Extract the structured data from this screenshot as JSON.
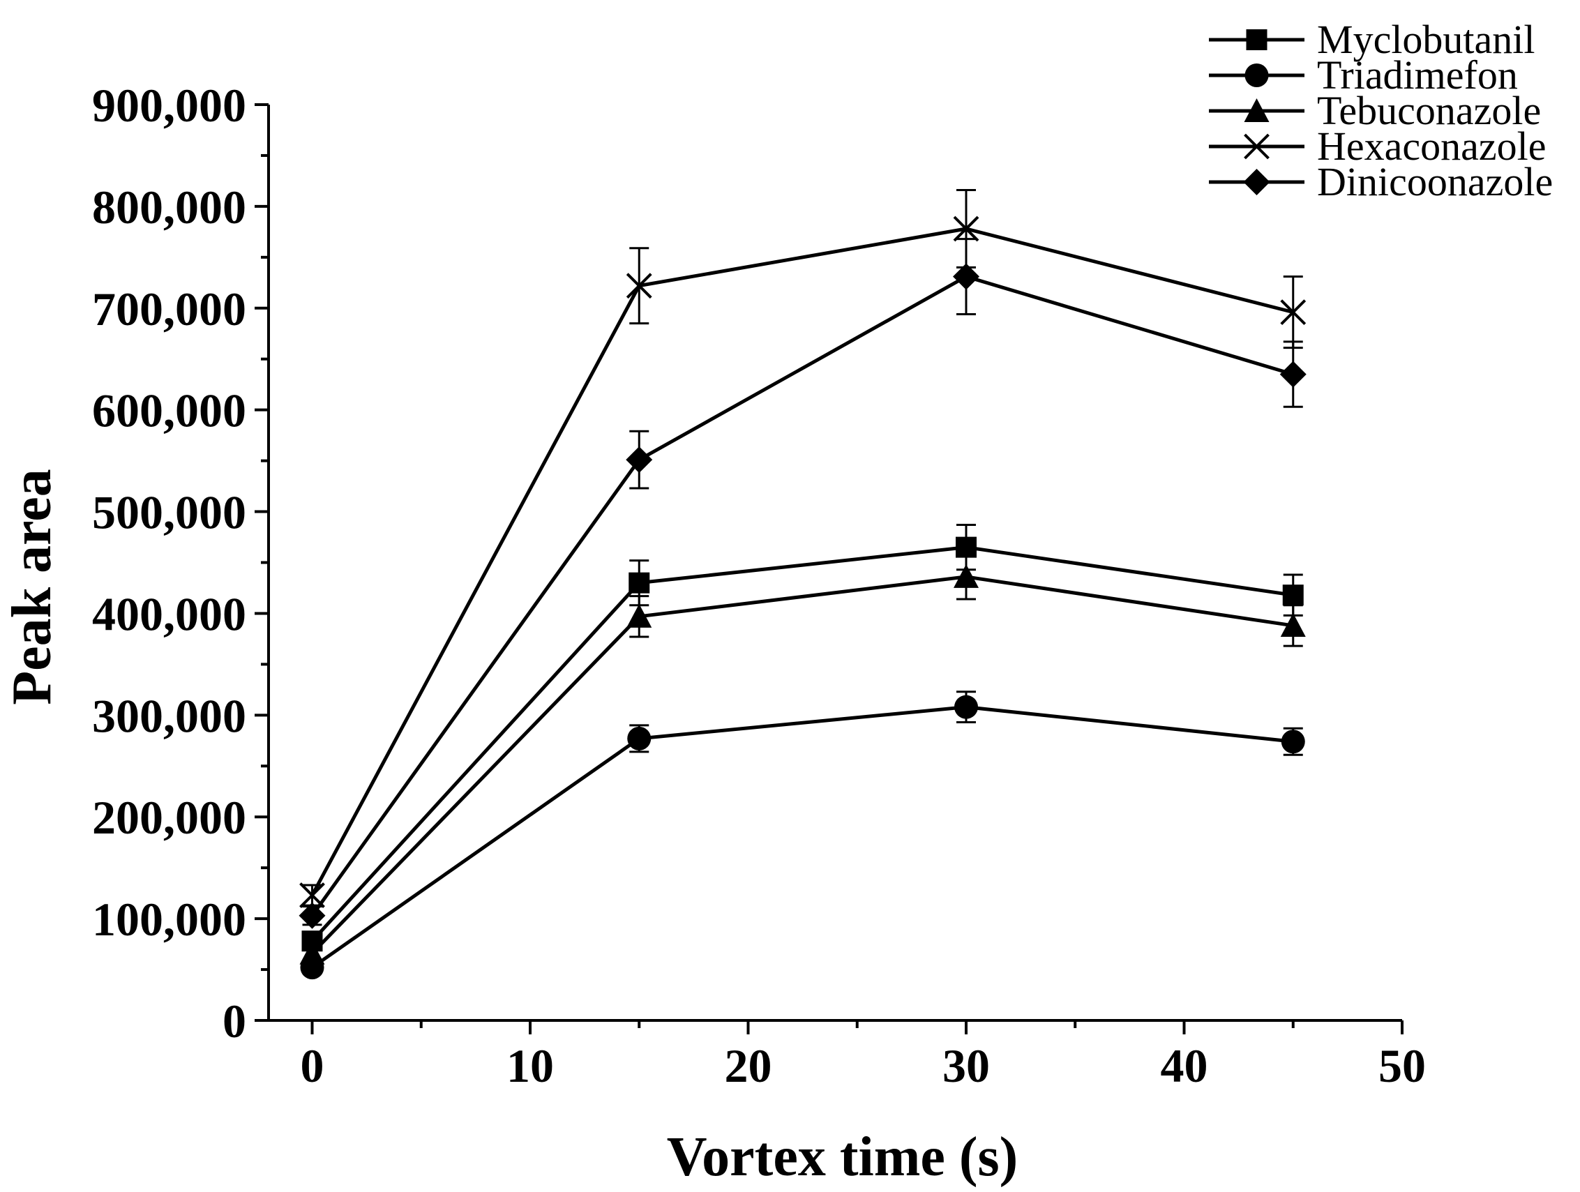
{
  "chart_data": {
    "type": "line",
    "title": "",
    "xlabel": "Vortex time (s)",
    "ylabel": "Peak area",
    "xlim": [
      -2,
      50
    ],
    "ylim": [
      0,
      900000
    ],
    "x_ticks": [
      0,
      10,
      20,
      30,
      40,
      50
    ],
    "x_tick_labels": [
      "0",
      "10",
      "20",
      "30",
      "40",
      "50"
    ],
    "y_ticks": [
      0,
      100000,
      200000,
      300000,
      400000,
      500000,
      600000,
      700000,
      800000,
      900000
    ],
    "y_tick_labels": [
      "0",
      "100,000",
      "200,000",
      "300,000",
      "400,000",
      "500,000",
      "600,000",
      "700,000",
      "800,000",
      "900,000"
    ],
    "grid": false,
    "legend_position": "top-right",
    "x": [
      0,
      15,
      30,
      45
    ],
    "series": [
      {
        "name": "Myclobutanil",
        "marker": "square",
        "values": [
          78000,
          430000,
          465000,
          418000
        ],
        "errors": [
          8000,
          22000,
          22000,
          20000
        ]
      },
      {
        "name": "Triadimefon",
        "marker": "circle",
        "values": [
          52000,
          277000,
          308000,
          274000
        ],
        "errors": [
          5000,
          13000,
          15000,
          13000
        ]
      },
      {
        "name": "Tebuconazole",
        "marker": "triangle",
        "values": [
          66000,
          397000,
          436000,
          388000
        ],
        "errors": [
          7000,
          20000,
          22000,
          20000
        ]
      },
      {
        "name": "Hexaconazole",
        "marker": "x",
        "values": [
          123000,
          722000,
          778000,
          696000
        ],
        "errors": [
          10000,
          37000,
          38000,
          35000
        ]
      },
      {
        "name": "Dinicoonazole",
        "marker": "diamond",
        "values": [
          103000,
          551000,
          731000,
          635000
        ],
        "errors": [
          9000,
          28000,
          37000,
          32000
        ]
      }
    ],
    "colors": {
      "line": "#000000",
      "background": "#ffffff"
    }
  }
}
